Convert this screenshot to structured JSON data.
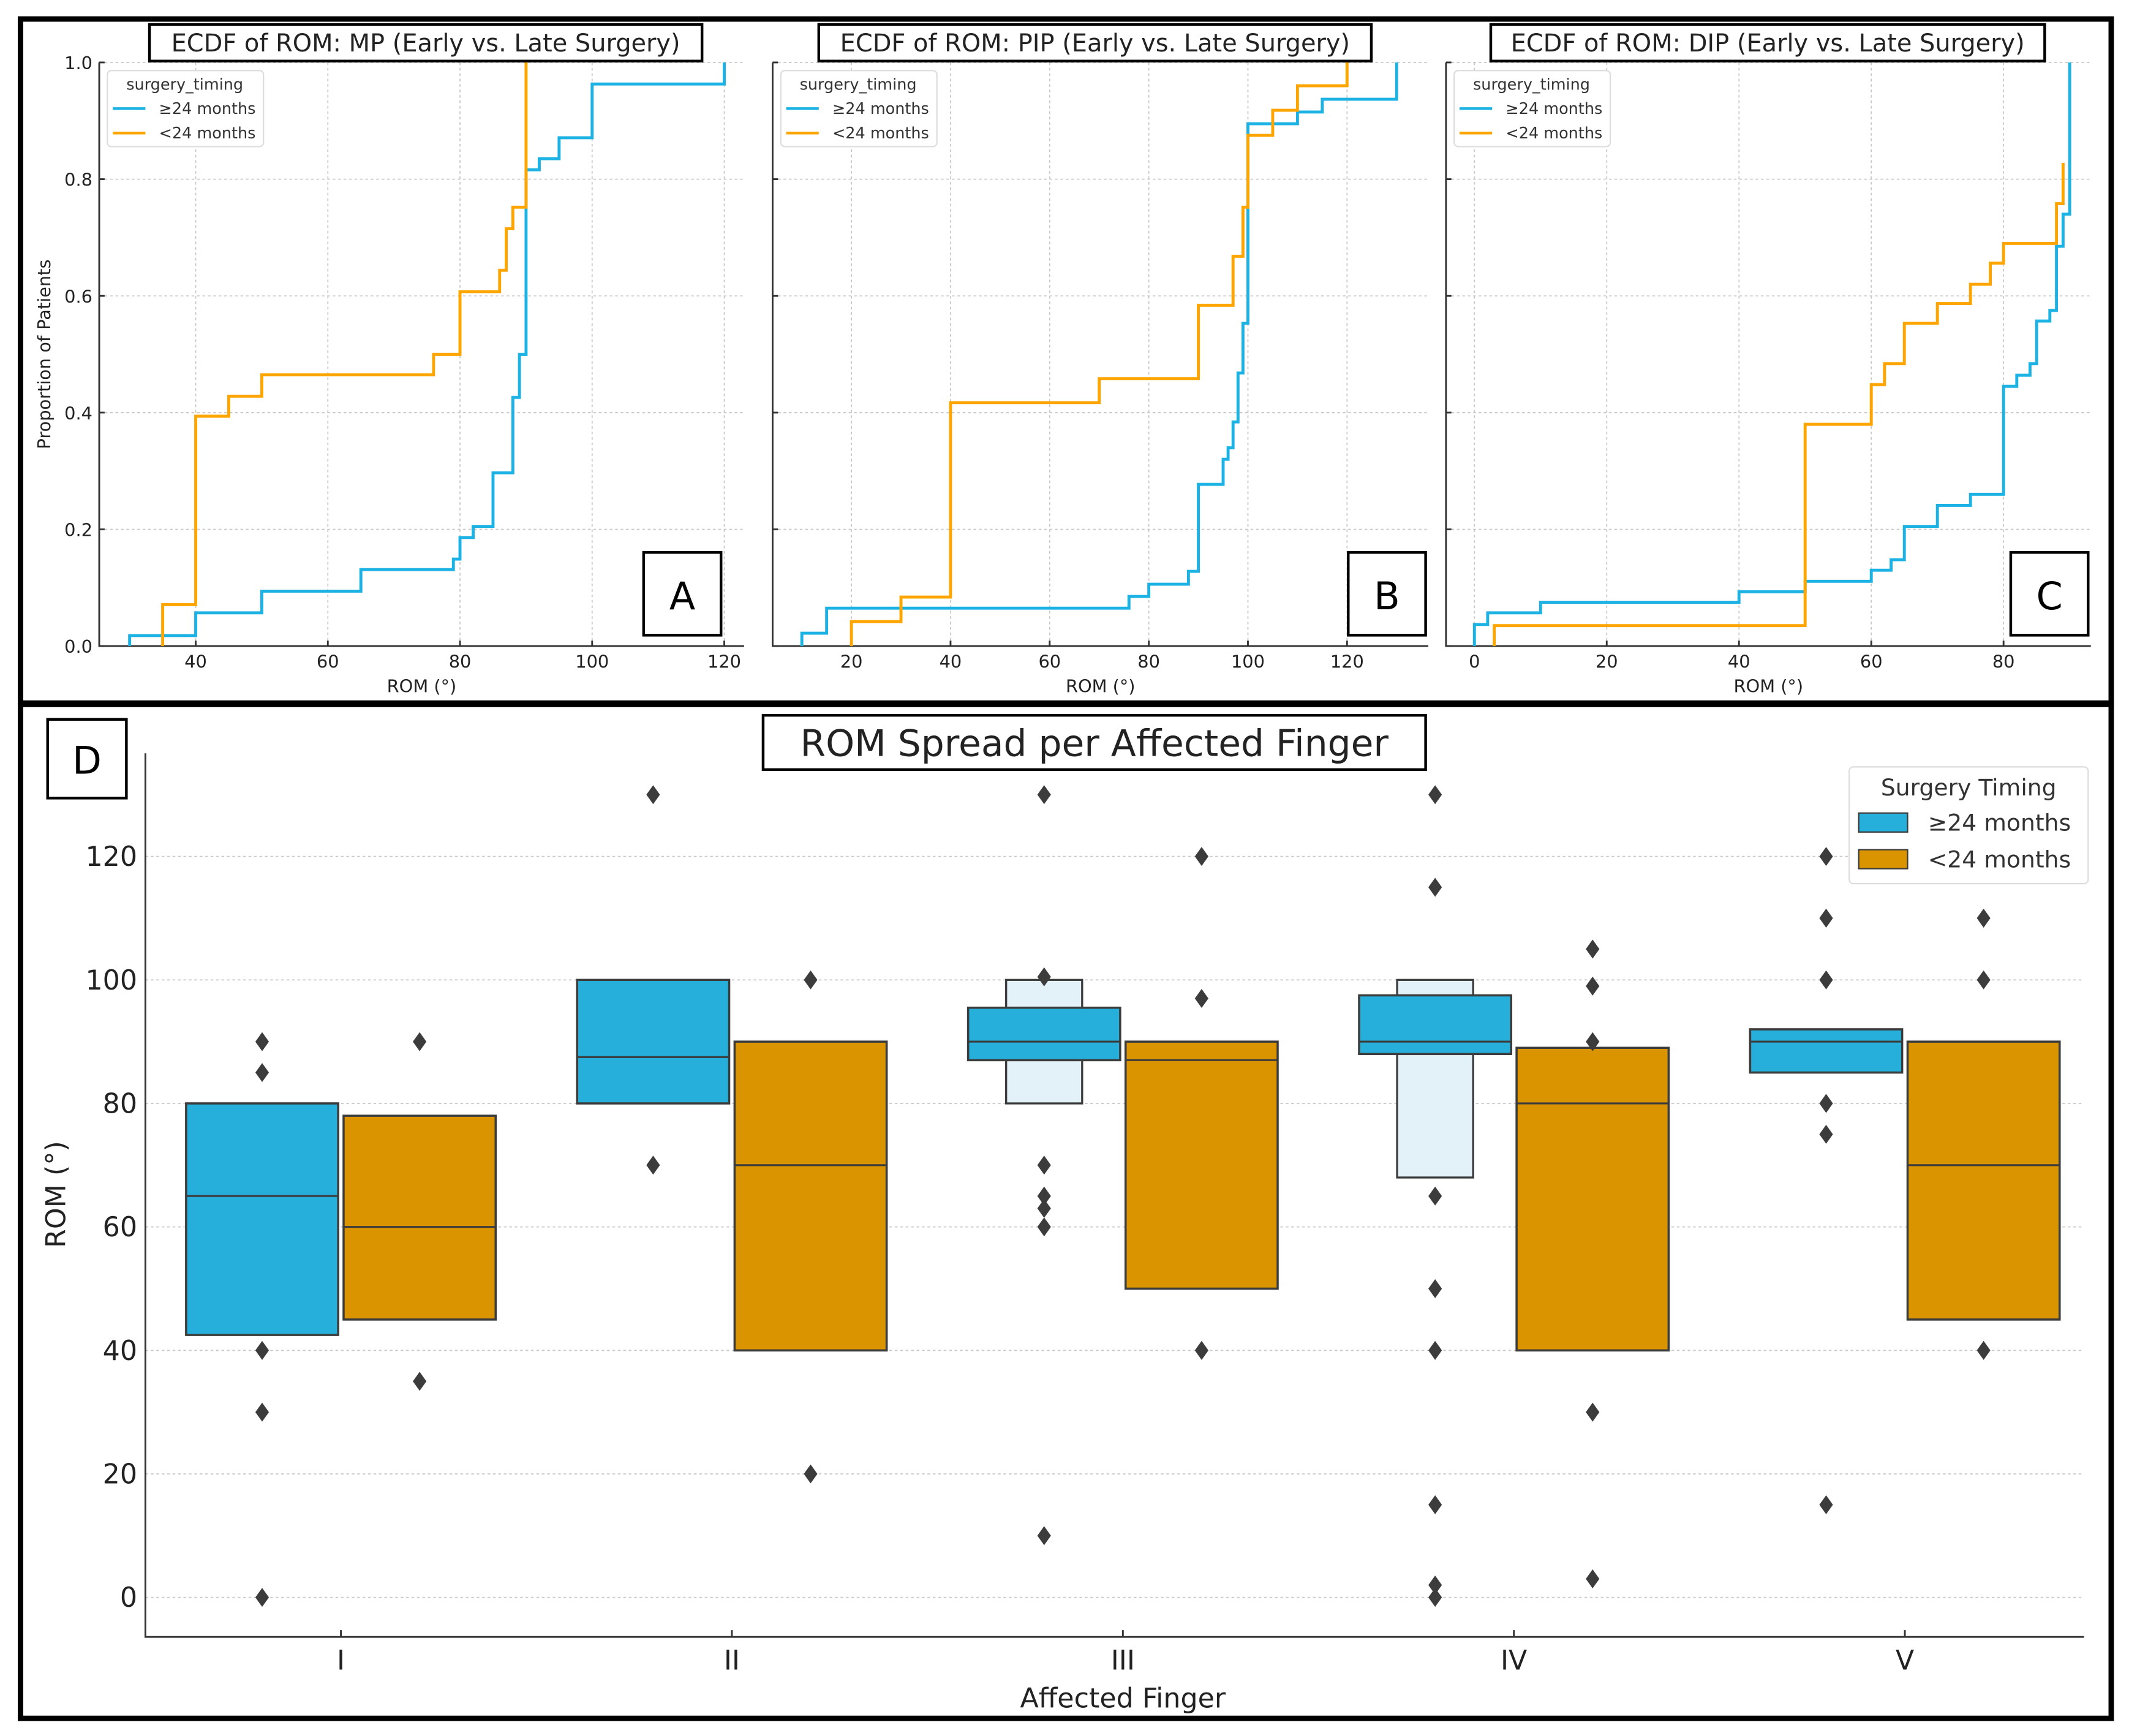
{
  "colors": {
    "ecdf_blue": "#1cb2e4",
    "ecdf_orange": "#ffa500",
    "box_blue": "#26afdb",
    "box_orange": "#d99400",
    "box_light": "#e3f2f9",
    "outlier": "#3c3c3c"
  },
  "chart_data": [
    {
      "type": "line",
      "panel_label": "A",
      "title": "ECDF of ROM: MP (Early vs. Late Surgery)",
      "xlabel": "ROM (°)",
      "ylabel": "Proportion of Patients",
      "legend_title": "surgery_timing",
      "legend_placement": "top-left",
      "xlim": [
        25.4,
        123
      ],
      "ylim": [
        0,
        1
      ],
      "xticks": [
        "40",
        "60",
        "80",
        "100",
        "120"
      ],
      "yticks": [
        "0.0",
        "0.2",
        "0.4",
        "0.6",
        "0.8",
        "1.0"
      ],
      "series": [
        {
          "name": "≥24 months",
          "steps": [
            [
              30,
              0.018
            ],
            [
              40,
              0.057
            ],
            [
              50,
              0.094
            ],
            [
              65,
              0.131
            ],
            [
              79,
              0.149
            ],
            [
              80,
              0.186
            ],
            [
              82,
              0.205
            ],
            [
              85,
              0.297
            ],
            [
              88,
              0.426
            ],
            [
              89,
              0.5
            ],
            [
              90,
              0.816
            ],
            [
              92,
              0.835
            ],
            [
              95,
              0.871
            ],
            [
              100,
              0.963
            ],
            [
              120,
              1.0
            ]
          ]
        },
        {
          "name": "<24 months",
          "steps": [
            [
              35,
              0.071
            ],
            [
              40,
              0.394
            ],
            [
              45,
              0.428
            ],
            [
              50,
              0.465
            ],
            [
              76,
              0.5
            ],
            [
              80,
              0.607
            ],
            [
              86,
              0.644
            ],
            [
              87,
              0.715
            ],
            [
              88,
              0.752
            ],
            [
              90,
              1.0
            ]
          ]
        }
      ]
    },
    {
      "type": "line",
      "panel_label": "B",
      "title": "ECDF of ROM: PIP (Early vs. Late Surgery)",
      "xlabel": "ROM (°)",
      "ylabel": "",
      "legend_title": "surgery_timing",
      "legend_placement": "top-left",
      "xlim": [
        4.1,
        136.4
      ],
      "ylim": [
        0,
        1
      ],
      "xticks": [
        "20",
        "40",
        "60",
        "80",
        "100",
        "120"
      ],
      "yticks": [],
      "series": [
        {
          "name": "≥24 months",
          "steps": [
            [
              10,
              0.022
            ],
            [
              15,
              0.065
            ],
            [
              76,
              0.085
            ],
            [
              80,
              0.106
            ],
            [
              88,
              0.128
            ],
            [
              90,
              0.277
            ],
            [
              95,
              0.32
            ],
            [
              96,
              0.34
            ],
            [
              97,
              0.384
            ],
            [
              98,
              0.468
            ],
            [
              99,
              0.553
            ],
            [
              100,
              0.895
            ],
            [
              110,
              0.915
            ],
            [
              115,
              0.937
            ],
            [
              130,
              1.0
            ]
          ]
        },
        {
          "name": "<24 months",
          "steps": [
            [
              20,
              0.042
            ],
            [
              30,
              0.084
            ],
            [
              40,
              0.417
            ],
            [
              70,
              0.458
            ],
            [
              90,
              0.584
            ],
            [
              97,
              0.668
            ],
            [
              99,
              0.752
            ],
            [
              100,
              0.875
            ],
            [
              105,
              0.918
            ],
            [
              110,
              0.96
            ],
            [
              120,
              1.0
            ]
          ]
        }
      ]
    },
    {
      "type": "line",
      "panel_label": "C",
      "title": "ECDF of ROM: DIP (Early vs. Late Surgery)",
      "xlabel": "ROM (°)",
      "ylabel": "",
      "legend_title": "surgery_timing",
      "legend_placement": "top-left",
      "xlim": [
        -4.3,
        93.2
      ],
      "ylim": [
        0,
        1
      ],
      "xticks": [
        "0",
        "20",
        "40",
        "60",
        "80"
      ],
      "yticks": [],
      "series": [
        {
          "name": "≥24 months",
          "steps": [
            [
              0,
              0.037
            ],
            [
              2,
              0.057
            ],
            [
              10,
              0.075
            ],
            [
              40,
              0.093
            ],
            [
              50,
              0.111
            ],
            [
              60,
              0.13
            ],
            [
              63,
              0.148
            ],
            [
              65,
              0.205
            ],
            [
              70,
              0.241
            ],
            [
              75,
              0.26
            ],
            [
              80,
              0.445
            ],
            [
              82,
              0.464
            ],
            [
              84,
              0.484
            ],
            [
              85,
              0.557
            ],
            [
              87,
              0.575
            ],
            [
              88,
              0.685
            ],
            [
              89,
              0.74
            ],
            [
              90,
              1.0
            ]
          ]
        },
        {
          "name": "<24 months",
          "steps": [
            [
              3,
              0.035
            ],
            [
              50,
              0.38
            ],
            [
              60,
              0.448
            ],
            [
              62,
              0.484
            ],
            [
              65,
              0.553
            ],
            [
              70,
              0.587
            ],
            [
              75,
              0.62
            ],
            [
              78,
              0.656
            ],
            [
              80,
              0.69
            ],
            [
              88,
              0.758
            ],
            [
              89,
              0.828
            ]
          ]
        }
      ]
    },
    {
      "type": "boxen",
      "panel_label": "D",
      "title": "ROM Spread per Affected Finger",
      "xlabel": "Affected Finger",
      "ylabel": "ROM (°)",
      "legend_title": "Surgery Timing",
      "legend_placement": "top-right",
      "ylim": [
        -6.4,
        136.7
      ],
      "yticks": [
        "0",
        "20",
        "40",
        "60",
        "80",
        "100",
        "120"
      ],
      "categories": [
        "I",
        "II",
        "III",
        "IV",
        "V"
      ],
      "series": [
        {
          "name": "≥24 months",
          "boxes": [
            {
              "low": 42.5,
              "median": 65,
              "high": 80,
              "outer": null,
              "outliers": [
                90,
                85,
                40,
                30,
                0
              ]
            },
            {
              "low": 80,
              "median": 87.5,
              "high": 100,
              "outer": null,
              "outliers": [
                130,
                70
              ]
            },
            {
              "low": 87,
              "median": 90,
              "high": 95.5,
              "outer": [
                80,
                100
              ],
              "outliers": [
                130,
                100.5,
                70,
                65,
                63,
                60,
                10
              ]
            },
            {
              "low": 88,
              "median": 90,
              "high": 97.5,
              "outer": [
                68,
                100
              ],
              "outliers": [
                130,
                115,
                65,
                50,
                40,
                15,
                2,
                0
              ]
            },
            {
              "low": 85,
              "median": 90,
              "high": 92,
              "outer": null,
              "outliers": [
                120,
                110,
                100,
                80,
                75,
                15
              ]
            }
          ]
        },
        {
          "name": "<24 months",
          "boxes": [
            {
              "low": 45,
              "median": 60,
              "high": 78,
              "outer": null,
              "outliers": [
                90,
                35
              ]
            },
            {
              "low": 40,
              "median": 70,
              "high": 90,
              "outer": null,
              "outliers": [
                100,
                20
              ]
            },
            {
              "low": 50,
              "median": 87,
              "high": 90,
              "outer": null,
              "outliers": [
                120,
                97,
                40
              ]
            },
            {
              "low": 40,
              "median": 80,
              "high": 89,
              "outer": null,
              "outliers": [
                105,
                99,
                90,
                30,
                3
              ]
            },
            {
              "low": 45,
              "median": 70,
              "high": 90,
              "outer": null,
              "outliers": [
                110,
                100,
                40
              ]
            }
          ]
        }
      ]
    }
  ]
}
